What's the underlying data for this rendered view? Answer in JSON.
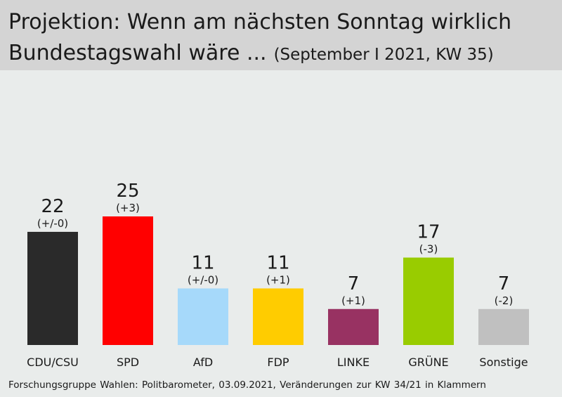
{
  "title": {
    "line1": "Projektion: Wenn am nächsten Sonntag wirklich",
    "line2": "Bundestagswahl wäre ...",
    "subtitle": "(September I 2021, KW 35)"
  },
  "footer": "Forschungsgruppe Wahlen: Politbarometer, 03.09.2021, Veränderungen zur KW 34/21 in Klammern",
  "chart_data": {
    "type": "bar",
    "categories": [
      "CDU/CSU",
      "SPD",
      "AfD",
      "FDP",
      "LINKE",
      "GRÜNE",
      "Sonstige"
    ],
    "values": [
      22,
      25,
      11,
      11,
      7,
      17,
      7
    ],
    "changes": [
      "(+/-0)",
      "(+3)",
      "(+/-0)",
      "(+1)",
      "(+1)",
      "(-3)",
      "(-2)"
    ],
    "colors": [
      "#2a2a2a",
      "#ff0000",
      "#a6d9fa",
      "#ffcc00",
      "#983262",
      "#99cc00",
      "#c0c0c0"
    ],
    "ylim": [
      0,
      25
    ],
    "grid": false,
    "legend": "none"
  }
}
